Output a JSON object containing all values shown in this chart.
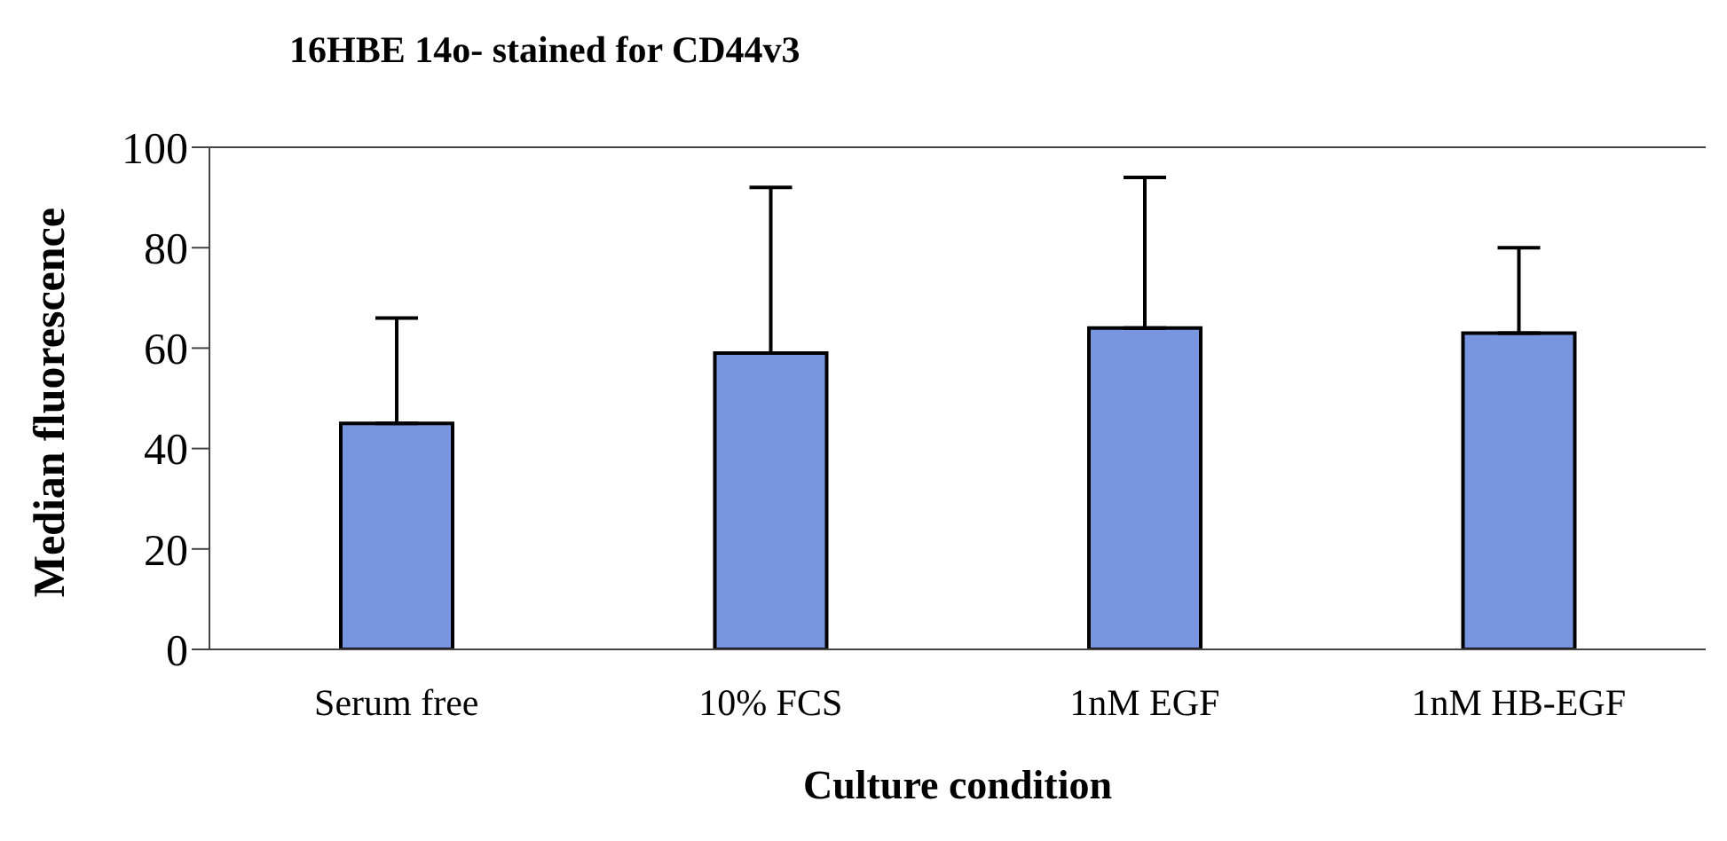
{
  "chart_data": {
    "type": "bar",
    "title": "16HBE 14o- stained for CD44v3",
    "xlabel": "Culture condition",
    "ylabel": "Median fluorescence",
    "categories": [
      "Serum free",
      "10% FCS",
      "1nM EGF",
      "1nM HB-EGF"
    ],
    "values": [
      45,
      59,
      64,
      63
    ],
    "errors": [
      [
        45,
        66
      ],
      [
        59,
        92
      ],
      [
        64,
        94
      ],
      [
        63,
        80
      ]
    ],
    "color": "#7896e0",
    "ylim": [
      0,
      100
    ],
    "yticks": [
      0,
      20,
      40,
      60,
      80,
      100
    ]
  }
}
